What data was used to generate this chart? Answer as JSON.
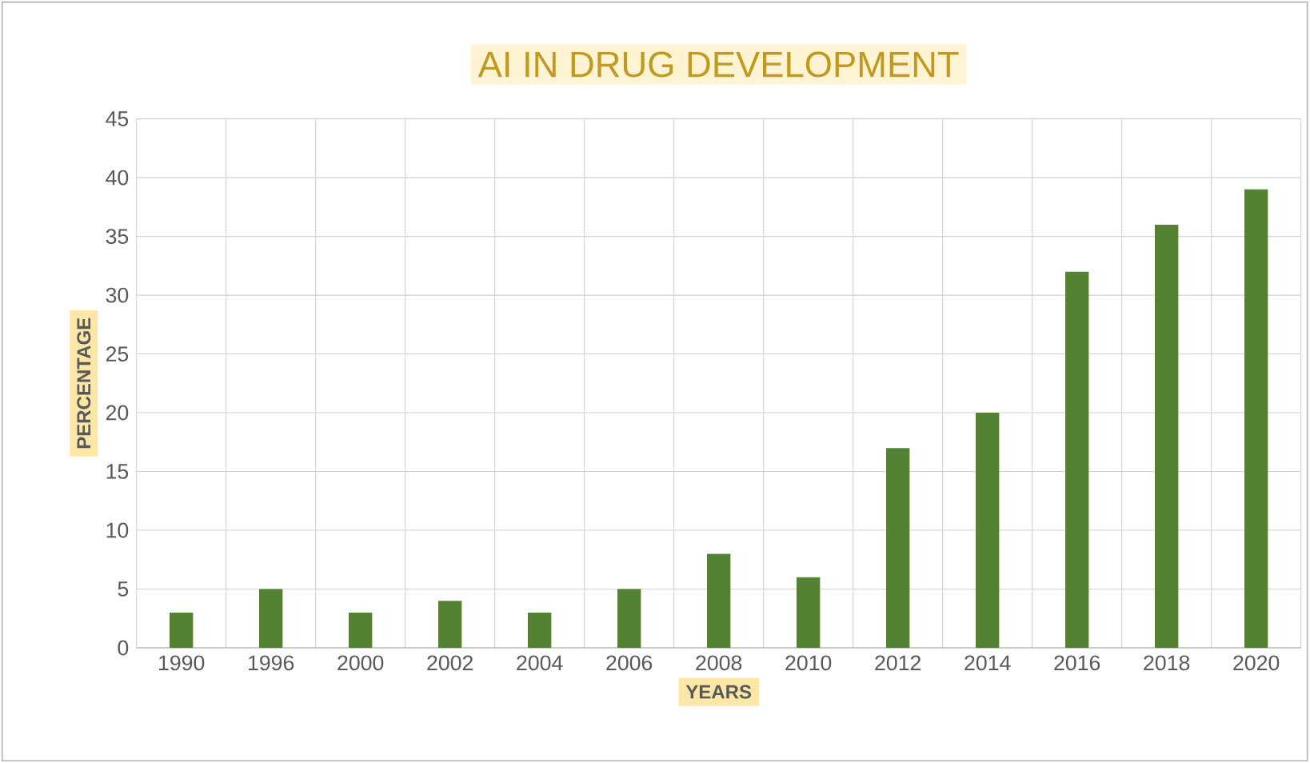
{
  "chart_data": {
    "type": "bar",
    "title": "AI IN DRUG DEVELOPMENT",
    "xlabel": "YEARS",
    "ylabel": "PERCENTAGE",
    "categories": [
      "1990",
      "1996",
      "2000",
      "2002",
      "2004",
      "2006",
      "2008",
      "2010",
      "2012",
      "2014",
      "2016",
      "2018",
      "2020"
    ],
    "values": [
      3,
      5,
      3,
      4,
      3,
      5,
      8,
      6,
      17,
      20,
      32,
      36,
      39
    ],
    "color": "#548235",
    "ylim": [
      0,
      45
    ],
    "yticks": [
      0,
      5,
      10,
      15,
      20,
      25,
      30,
      35,
      40,
      45
    ],
    "grid": true
  }
}
